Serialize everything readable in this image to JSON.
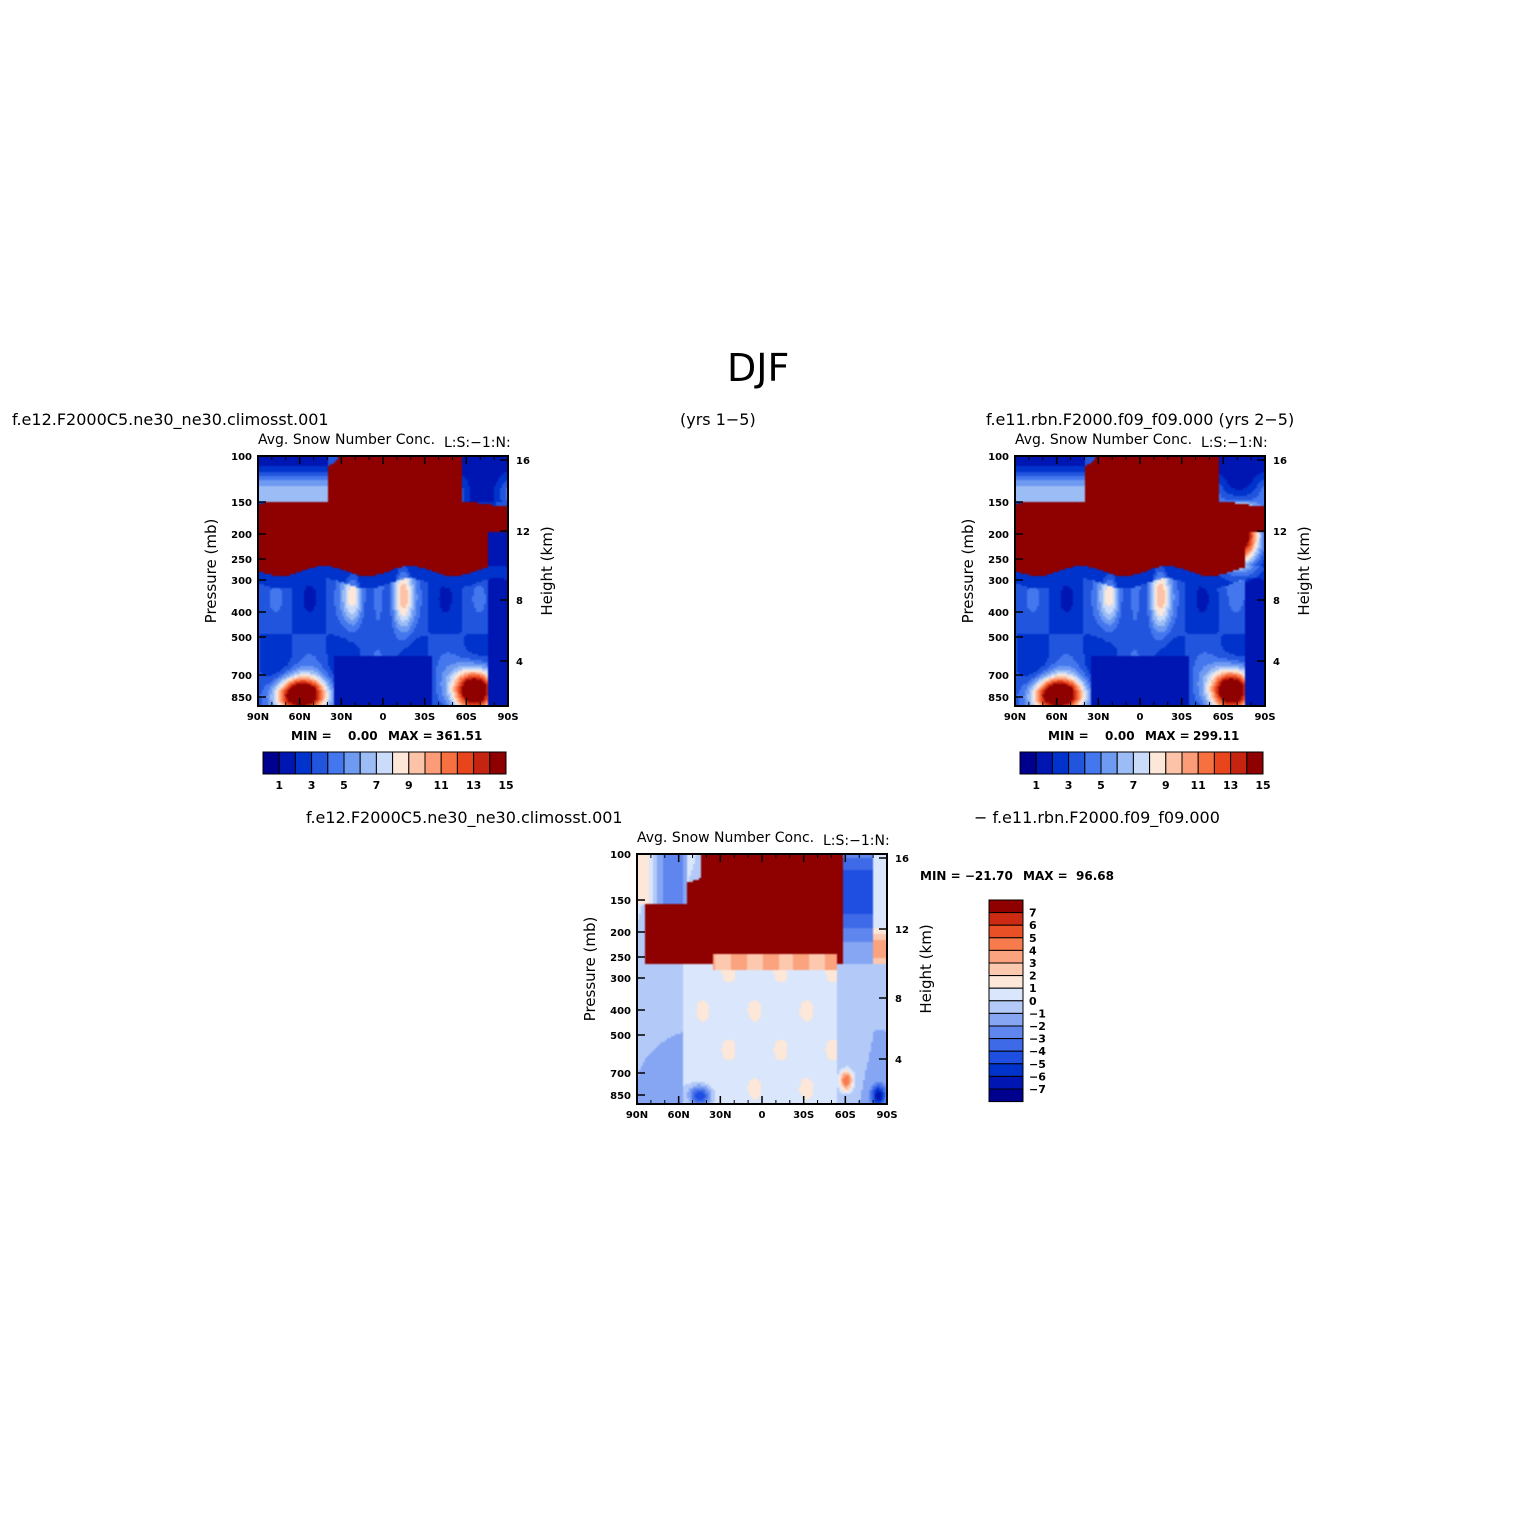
{
  "figure": {
    "title": "DJF",
    "top_left_label": "f.e12.F2000C5.ne30_ne30.climosst.001",
    "top_center_label": "(yrs  1−5)",
    "top_right_label": "f.e11.rbn.F2000.f09_f09.000  (yrs  2−5)",
    "bottom_left_label": "f.e12.F2000C5.ne30_ne30.climosst.001",
    "bottom_right_label": "−  f.e11.rbn.F2000.f09_f09.000"
  },
  "colors": {
    "background": "#ffffff",
    "field_scale": [
      "#00008f",
      "#0016b3",
      "#0033cc",
      "#2255dd",
      "#4477ee",
      "#6e9af2",
      "#9cbcf6",
      "#cbdcfa",
      "#fde7d9",
      "#fcc3a8",
      "#fb9b77",
      "#f7703f",
      "#e8451d",
      "#c42410",
      "#8f0000"
    ],
    "diff_scale": [
      "#00008f",
      "#0016b3",
      "#0033cc",
      "#1f4fe0",
      "#3e6ae8",
      "#5f86ee",
      "#86a6f3",
      "#b3c9f8",
      "#d9e6fb",
      "#fde7d9",
      "#fcc8ae",
      "#fba27f",
      "#f77b4d",
      "#ea5026",
      "#cc2a12",
      "#8f0000"
    ]
  },
  "chart_data": [
    {
      "id": "panel-1",
      "type": "heatmap",
      "title": "Avg.  Snow  Number  Conc.",
      "units_label": "L:S:−1:N:",
      "ylabel": "Pressure  (mb)",
      "y2label": "Height  (km)",
      "x_ticks": [
        "90N",
        "60N",
        "30N",
        "0",
        "30S",
        "60S",
        "90S"
      ],
      "y_ticks": [
        "100",
        "150",
        "200",
        "250",
        "300",
        "400",
        "500",
        "700",
        "850"
      ],
      "y2_ticks": [
        "16",
        "12",
        "8",
        "4"
      ],
      "min_label": "MIN  =",
      "min_value": "0.00",
      "max_label": "MAX  =",
      "max_value": "361.51",
      "colorbar_labels": [
        "1",
        "3",
        "5",
        "7",
        "9",
        "11",
        "13",
        "15"
      ],
      "features": {
        "upper_band_center_km": 12.5,
        "upper_band_max": "saturated",
        "surface_maxima": [
          "60N",
          "60S"
        ]
      }
    },
    {
      "id": "panel-2",
      "type": "heatmap",
      "title": "Avg.  Snow  Number  Conc.",
      "units_label": "L:S:−1:N:",
      "ylabel": "Pressure  (mb)",
      "y2label": "Height  (km)",
      "x_ticks": [
        "90N",
        "60N",
        "30N",
        "0",
        "30S",
        "60S",
        "90S"
      ],
      "y_ticks": [
        "100",
        "150",
        "200",
        "250",
        "300",
        "400",
        "500",
        "700",
        "850"
      ],
      "y2_ticks": [
        "16",
        "12",
        "8",
        "4"
      ],
      "min_label": "MIN  =",
      "min_value": "0.00",
      "max_label": "MAX  =",
      "max_value": "299.11",
      "colorbar_labels": [
        "1",
        "3",
        "5",
        "7",
        "9",
        "11",
        "13",
        "15"
      ],
      "features": {
        "upper_band_center_km": 12.0,
        "upper_band_max": "saturated",
        "surface_maxima": [
          "60N",
          "60S"
        ]
      }
    },
    {
      "id": "panel-3",
      "type": "heatmap",
      "title": "Avg.  Snow  Number  Conc.",
      "units_label": "L:S:−1:N:",
      "ylabel": "Pressure  (mb)",
      "y2label": "Height  (km)",
      "x_ticks": [
        "90N",
        "60N",
        "30N",
        "0",
        "30S",
        "60S",
        "90S"
      ],
      "y_ticks": [
        "100",
        "150",
        "200",
        "250",
        "300",
        "400",
        "500",
        "700",
        "850"
      ],
      "y2_ticks": [
        "16",
        "12",
        "8",
        "4"
      ],
      "min_label": "MIN  =  −21.70",
      "max_label": "MAX  =",
      "max_value": "96.68",
      "colorbar_labels": [
        "7",
        "6",
        "5",
        "4",
        "3",
        "2",
        "1",
        "0",
        "−1",
        "−2",
        "−3",
        "−4",
        "−5",
        "−6",
        "−7"
      ],
      "features": {
        "difference": true,
        "upper_band_sign": "positive",
        "polar_sign": "negative"
      }
    }
  ]
}
